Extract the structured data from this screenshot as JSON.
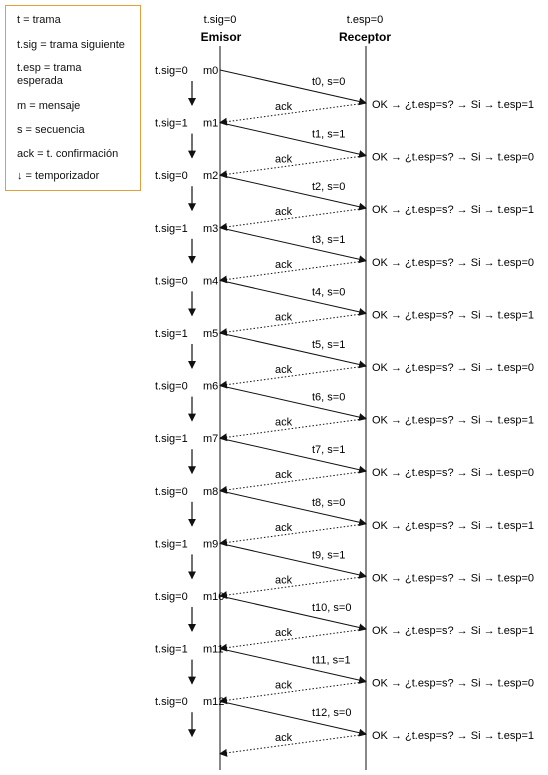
{
  "legend": [
    "t = trama",
    "t.sig = trama siguiente",
    "t.esp = trama",
    "esperada",
    "m = mensaje",
    "s = secuencia",
    "ack = t. confirmación",
    "↓ = temporizador"
  ],
  "header": {
    "sender_init": "t.sig=0",
    "receiver_init": "t.esp=0",
    "sender_label": "Emisor",
    "receiver_label": "Receptor"
  },
  "ack_label": "ack",
  "steps": [
    {
      "tsig": "t.sig=0",
      "msg": "m0",
      "frame": "t0, s=0",
      "result": "OK → ¿t.esp=s? → Si → t.esp=1"
    },
    {
      "tsig": "t.sig=1",
      "msg": "m1",
      "frame": "t1, s=1",
      "result": "OK → ¿t.esp=s? → Si → t.esp=0"
    },
    {
      "tsig": "t.sig=0",
      "msg": "m2",
      "frame": "t2, s=0",
      "result": "OK → ¿t.esp=s? → Si → t.esp=1"
    },
    {
      "tsig": "t.sig=1",
      "msg": "m3",
      "frame": "t3, s=1",
      "result": "OK → ¿t.esp=s? → Si → t.esp=0"
    },
    {
      "tsig": "t.sig=0",
      "msg": "m4",
      "frame": "t4, s=0",
      "result": "OK → ¿t.esp=s? → Si → t.esp=1"
    },
    {
      "tsig": "t.sig=1",
      "msg": "m5",
      "frame": "t5, s=1",
      "result": "OK → ¿t.esp=s? → Si → t.esp=0"
    },
    {
      "tsig": "t.sig=0",
      "msg": "m6",
      "frame": "t6, s=0",
      "result": "OK → ¿t.esp=s? → Si → t.esp=1"
    },
    {
      "tsig": "t.sig=1",
      "msg": "m7",
      "frame": "t7, s=1",
      "result": "OK → ¿t.esp=s? → Si → t.esp=0"
    },
    {
      "tsig": "t.sig=0",
      "msg": "m8",
      "frame": "t8, s=0",
      "result": "OK → ¿t.esp=s? → Si → t.esp=1"
    },
    {
      "tsig": "t.sig=1",
      "msg": "m9",
      "frame": "t9, s=1",
      "result": "OK → ¿t.esp=s? → Si → t.esp=0"
    },
    {
      "tsig": "t.sig=0",
      "msg": "m10",
      "frame": "t10, s=0",
      "result": "OK → ¿t.esp=s? → Si → t.esp=1"
    },
    {
      "tsig": "t.sig=1",
      "msg": "m11",
      "frame": "t11, s=1",
      "result": "OK → ¿t.esp=s? → Si → t.esp=0"
    },
    {
      "tsig": "t.sig=0",
      "msg": "m12",
      "frame": "t12, s=0",
      "result": "OK → ¿t.esp=s? → Si → t.esp=1"
    }
  ]
}
